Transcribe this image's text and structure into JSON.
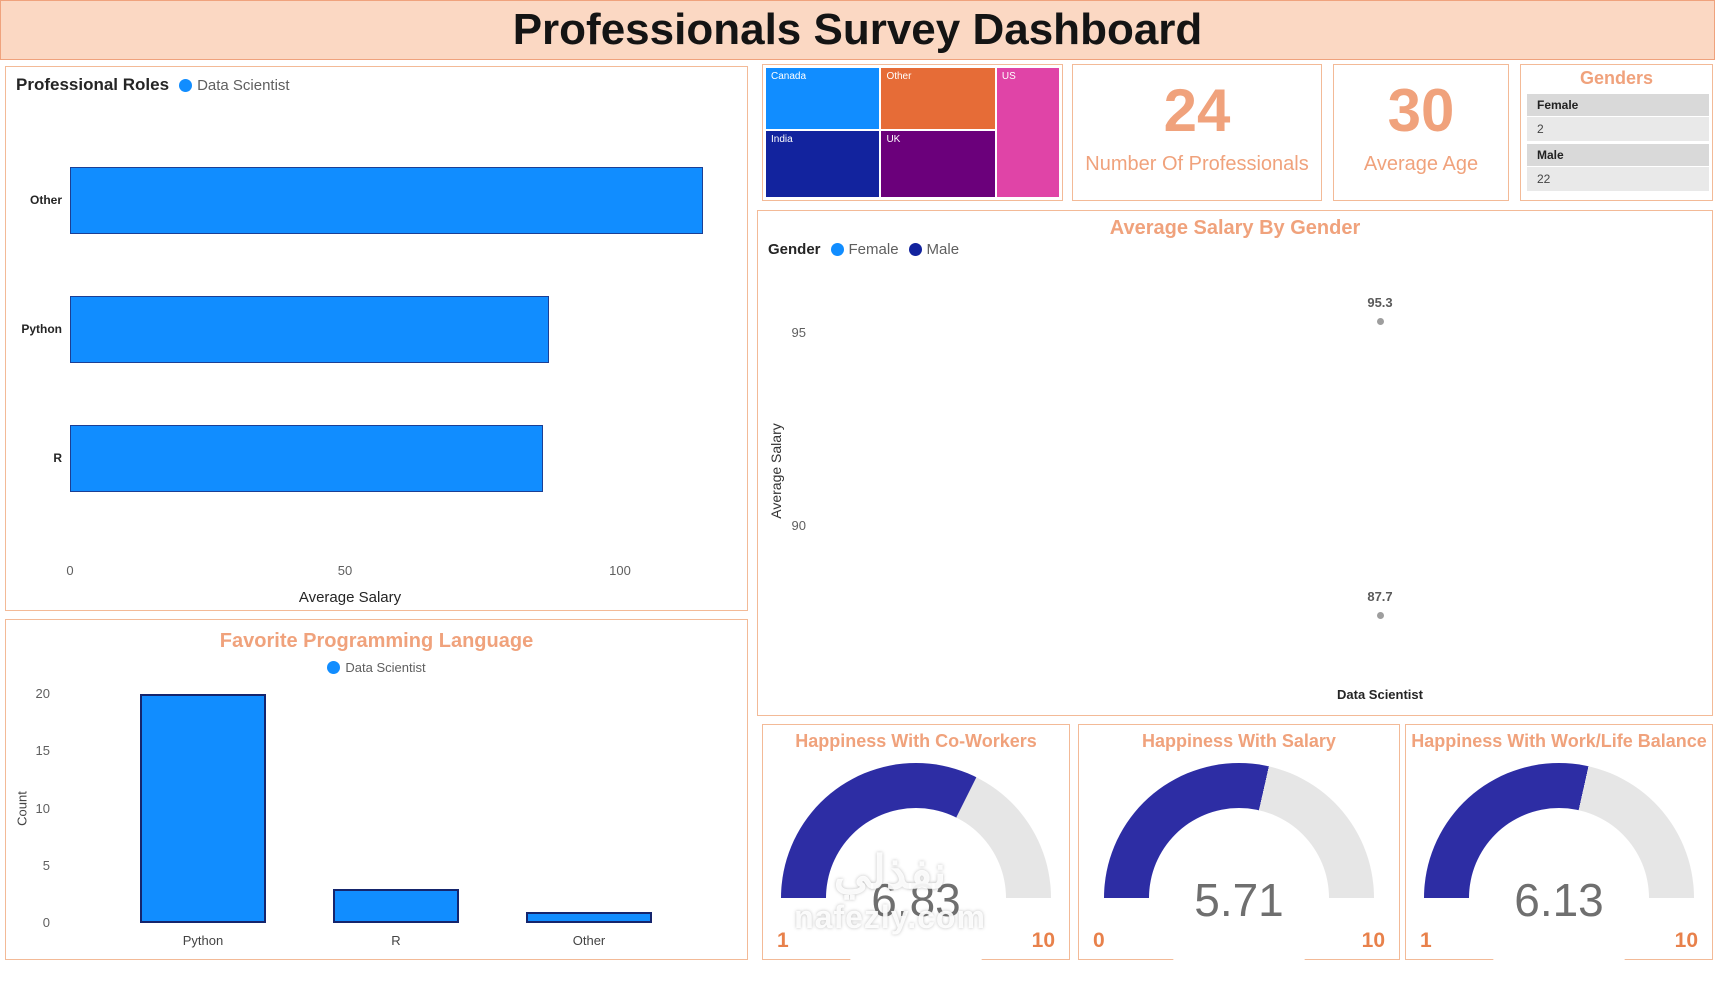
{
  "header": {
    "title": "Professionals Survey Dashboard"
  },
  "theme": {
    "accent": "#F0A27C",
    "accent_strong": "#E8814B",
    "header_bg": "#FBD8C3",
    "panel_border": "#F3BA97",
    "bar_blue": "#118DFF",
    "bar_border": "#15256D",
    "gauge_fill": "#2D2DA4",
    "gauge_track": "#E6E6E6",
    "value_gray": "#6F6F6F"
  },
  "kpis": [
    {
      "value": "24",
      "label": "Number Of Professionals"
    },
    {
      "value": "30",
      "label": "Average Age"
    }
  ],
  "genders": {
    "title": "Genders",
    "rows": [
      {
        "label": "Female",
        "value": "2"
      },
      {
        "label": "Male",
        "value": "22"
      }
    ]
  },
  "watermark": {
    "line1": "نفذلي",
    "line2": "nafezly.com"
  },
  "chart_data": [
    {
      "id": "professional-roles",
      "type": "bar",
      "orientation": "horizontal",
      "title": "Professional Roles",
      "legend": [
        "Data Scientist"
      ],
      "categories": [
        "Other",
        "Python",
        "R"
      ],
      "values": [
        115,
        87,
        86
      ],
      "xlabel": "Average Salary",
      "xticks": [
        0,
        50,
        100
      ],
      "xlim": [
        0,
        120
      ],
      "bar_color": "#118DFF"
    },
    {
      "id": "favorite-programming-language",
      "type": "bar",
      "orientation": "vertical",
      "title": "Favorite Programming Language",
      "legend": [
        "Data Scientist"
      ],
      "categories": [
        "Python",
        "R",
        "Other"
      ],
      "values": [
        20,
        3,
        1
      ],
      "ylabel": "Count",
      "yticks": [
        0,
        5,
        10,
        15,
        20
      ],
      "ylim": [
        0,
        20
      ],
      "bar_color": "#118DFF"
    },
    {
      "id": "countries-treemap",
      "type": "treemap",
      "items": [
        {
          "label": "Canada",
          "color": "#118DFF"
        },
        {
          "label": "Other",
          "color": "#E66C37"
        },
        {
          "label": "US",
          "color": "#E044A7"
        },
        {
          "label": "India",
          "color": "#12239E"
        },
        {
          "label": "UK",
          "color": "#6B007B"
        }
      ]
    },
    {
      "id": "average-salary-by-gender",
      "type": "scatter",
      "title": "Average Salary By Gender",
      "legend_title": "Gender",
      "legend": [
        {
          "label": "Female",
          "color": "#118DFF"
        },
        {
          "label": "Male",
          "color": "#12239E"
        }
      ],
      "ylabel": "Average Salary",
      "yticks": [
        95,
        90
      ],
      "x_category": "Data Scientist",
      "points": [
        {
          "label": "95.3",
          "value": 95.3
        },
        {
          "label": "87.7",
          "value": 87.7
        }
      ]
    },
    {
      "id": "happiness-coworkers",
      "type": "gauge",
      "title": "Happiness With Co-Workers",
      "value": 6.83,
      "value_label": "6.83",
      "min": 1,
      "max": 10
    },
    {
      "id": "happiness-salary",
      "type": "gauge",
      "title": "Happiness With Salary",
      "value": 5.71,
      "value_label": "5.71",
      "min": 0,
      "max": 10
    },
    {
      "id": "happiness-worklife",
      "type": "gauge",
      "title": "Happiness With Work/Life Balance",
      "value": 6.13,
      "value_label": "6.13",
      "min": 1,
      "max": 10
    }
  ]
}
